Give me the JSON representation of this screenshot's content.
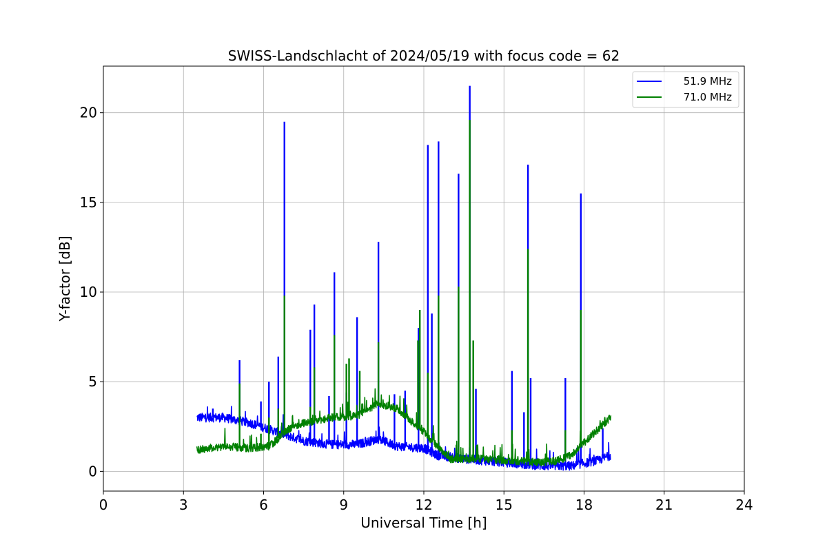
{
  "chart_data": {
    "type": "line",
    "title": "SWISS-Landschlacht of 2024/05/19 with focus code = 62",
    "xlabel": "Universal Time [h]",
    "ylabel": "Y-factor [dB]",
    "xlim": [
      0,
      24
    ],
    "ylim": [
      -1.1,
      22.6
    ],
    "xticks": [
      0,
      3,
      6,
      9,
      12,
      15,
      18,
      21,
      24
    ],
    "xtick_labels": [
      "0",
      "3",
      "6",
      "9",
      "12",
      "15",
      "18",
      "21",
      "24"
    ],
    "yticks": [
      0,
      5,
      10,
      15,
      20
    ],
    "ytick_labels": [
      "0",
      "5",
      "10",
      "15",
      "20"
    ],
    "grid": true,
    "legend_position": "top-right",
    "series": [
      {
        "name": "51.9 MHz",
        "color": "#0000ff",
        "baseline": [
          [
            3.5,
            3.0
          ],
          [
            4.5,
            3.0
          ],
          [
            5.5,
            2.7
          ],
          [
            6.5,
            2.2
          ],
          [
            7.5,
            1.7
          ],
          [
            8.5,
            1.5
          ],
          [
            9.5,
            1.5
          ],
          [
            10.3,
            1.8
          ],
          [
            11.0,
            1.4
          ],
          [
            12.0,
            1.3
          ],
          [
            12.5,
            0.9
          ],
          [
            13.5,
            0.7
          ],
          [
            15.0,
            0.5
          ],
          [
            16.5,
            0.3
          ],
          [
            17.5,
            0.3
          ],
          [
            18.5,
            0.6
          ],
          [
            19.0,
            0.9
          ]
        ],
        "noise": 0.25,
        "spikes": [
          [
            4.1,
            3.5
          ],
          [
            5.1,
            6.2
          ],
          [
            5.9,
            3.9
          ],
          [
            6.2,
            5.0
          ],
          [
            6.55,
            6.4
          ],
          [
            6.78,
            19.5
          ],
          [
            7.75,
            7.9
          ],
          [
            7.9,
            9.3
          ],
          [
            8.45,
            4.2
          ],
          [
            8.65,
            11.1
          ],
          [
            9.1,
            4.4
          ],
          [
            9.5,
            8.6
          ],
          [
            10.3,
            12.8
          ],
          [
            10.9,
            4.3
          ],
          [
            11.3,
            4.5
          ],
          [
            11.8,
            8.0
          ],
          [
            12.15,
            18.2
          ],
          [
            12.3,
            8.8
          ],
          [
            12.55,
            18.4
          ],
          [
            13.3,
            16.6
          ],
          [
            13.72,
            21.5
          ],
          [
            13.95,
            4.6
          ],
          [
            15.3,
            5.6
          ],
          [
            15.75,
            3.3
          ],
          [
            15.9,
            17.1
          ],
          [
            16.0,
            5.2
          ],
          [
            17.3,
            5.2
          ],
          [
            17.88,
            15.5
          ],
          [
            18.7,
            2.4
          ]
        ]
      },
      {
        "name": "71.0 MHz",
        "color": "#008000",
        "baseline": [
          [
            3.5,
            1.2
          ],
          [
            4.5,
            1.4
          ],
          [
            5.5,
            1.3
          ],
          [
            6.2,
            1.4
          ],
          [
            7.0,
            2.4
          ],
          [
            7.5,
            2.7
          ],
          [
            8.5,
            3.0
          ],
          [
            9.5,
            3.1
          ],
          [
            10.3,
            3.8
          ],
          [
            11.0,
            3.5
          ],
          [
            11.6,
            2.7
          ],
          [
            12.0,
            2.2
          ],
          [
            12.5,
            1.4
          ],
          [
            13.0,
            0.7
          ],
          [
            14.0,
            0.7
          ],
          [
            15.0,
            0.6
          ],
          [
            16.5,
            0.5
          ],
          [
            17.0,
            0.6
          ],
          [
            17.5,
            0.9
          ],
          [
            18.0,
            1.6
          ],
          [
            18.5,
            2.3
          ],
          [
            19.0,
            3.0
          ]
        ],
        "noise": 0.22,
        "spikes": [
          [
            5.1,
            4.9
          ],
          [
            5.9,
            2.1
          ],
          [
            6.2,
            3.0
          ],
          [
            6.55,
            3.5
          ],
          [
            6.78,
            9.8
          ],
          [
            7.75,
            3.6
          ],
          [
            7.9,
            5.8
          ],
          [
            8.65,
            7.6
          ],
          [
            9.1,
            6.0
          ],
          [
            9.2,
            6.3
          ],
          [
            9.6,
            5.6
          ],
          [
            10.3,
            7.2
          ],
          [
            11.78,
            7.3
          ],
          [
            11.85,
            9.0
          ],
          [
            12.15,
            5.5
          ],
          [
            12.55,
            9.8
          ],
          [
            13.3,
            10.3
          ],
          [
            13.72,
            19.6
          ],
          [
            13.85,
            7.3
          ],
          [
            15.3,
            2.3
          ],
          [
            15.9,
            12.4
          ],
          [
            17.3,
            2.3
          ],
          [
            17.88,
            9.0
          ]
        ]
      }
    ]
  }
}
